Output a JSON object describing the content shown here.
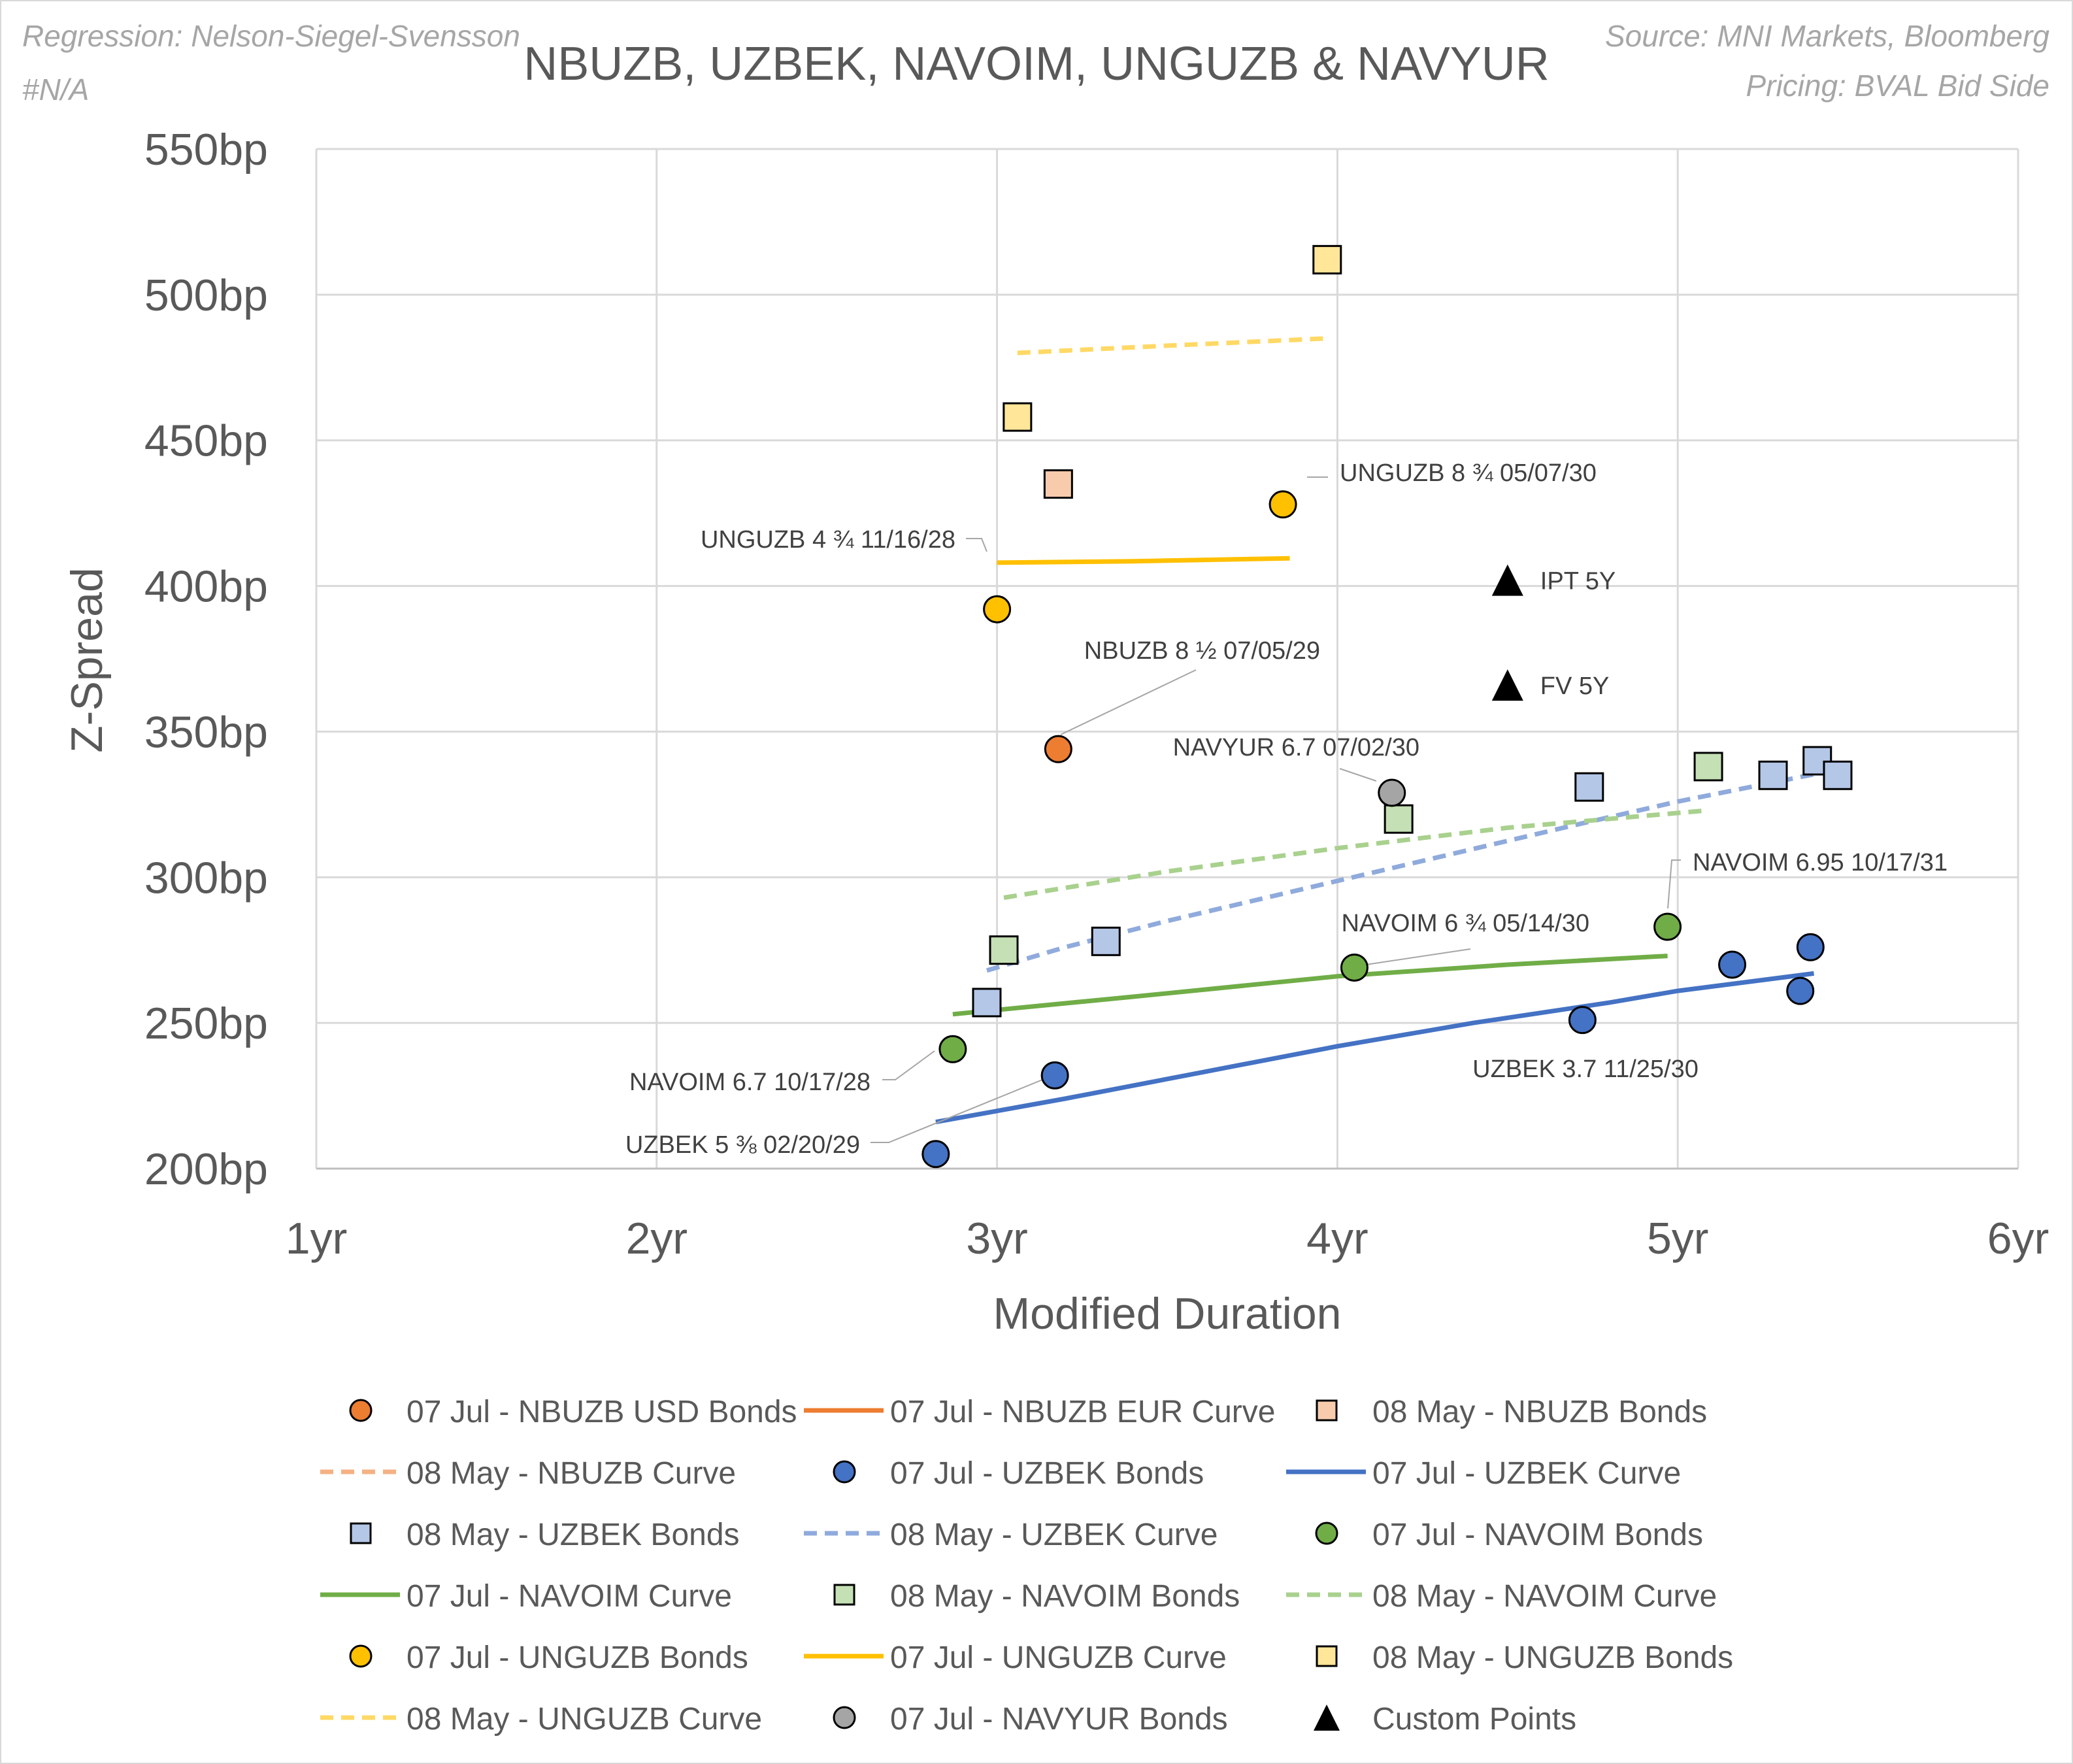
{
  "header": {
    "regression": "Regression: Nelson-Siegel-Svensson",
    "regression_value": "#N/A",
    "source": "Source: MNI Markets, Bloomberg",
    "pricing": "Pricing: BVAL Bid Side"
  },
  "chart_data": {
    "type": "scatter",
    "title": "NBUZB, UZBEK, NAVOIM, UNGUZB & NAVYUR",
    "xlabel": "Modified Duration",
    "ylabel": "Z-Spread",
    "xlim": [
      1,
      6
    ],
    "ylim": [
      200,
      550
    ],
    "x_ticks": [
      1,
      2,
      3,
      4,
      5,
      6
    ],
    "x_tick_labels": [
      "1yr",
      "2yr",
      "3yr",
      "4yr",
      "5yr",
      "6yr"
    ],
    "y_ticks": [
      200,
      250,
      300,
      350,
      400,
      450,
      500,
      550
    ],
    "y_tick_labels": [
      "200bp",
      "250bp",
      "300bp",
      "350bp",
      "400bp",
      "450bp",
      "500bp",
      "550bp"
    ],
    "grid": true,
    "legend_position": "bottom",
    "series": [
      {
        "name": "07 Jul - NBUZB  USD Bonds",
        "kind": "marker",
        "marker": "circle",
        "color": "#ed7d31",
        "points": [
          [
            3.18,
            344
          ]
        ]
      },
      {
        "name": "07 Jul - NBUZB EUR Curve",
        "kind": "line",
        "color": "#ed7d31",
        "dash": "solid",
        "points": []
      },
      {
        "name": "08 May - NBUZB Bonds",
        "kind": "marker",
        "marker": "square",
        "color": "#f8cbad",
        "points": [
          [
            3.18,
            435
          ]
        ]
      },
      {
        "name": "08 May - NBUZB Curve",
        "kind": "line",
        "color": "#f4b183",
        "dash": "dash",
        "points": []
      },
      {
        "name": "07 Jul - UZBEK Bonds",
        "kind": "marker",
        "marker": "circle",
        "color": "#4472c4",
        "points": [
          [
            2.82,
            205
          ],
          [
            3.17,
            232
          ],
          [
            4.72,
            251
          ],
          [
            5.16,
            270
          ],
          [
            5.36,
            261
          ],
          [
            5.39,
            276
          ]
        ]
      },
      {
        "name": "07 Jul - UZBEK Curve",
        "kind": "line",
        "color": "#4472c4",
        "dash": "solid",
        "points": [
          [
            2.82,
            216
          ],
          [
            3.2,
            224
          ],
          [
            3.6,
            233
          ],
          [
            4.0,
            242
          ],
          [
            4.4,
            250
          ],
          [
            4.8,
            257
          ],
          [
            5.0,
            261
          ],
          [
            5.4,
            267
          ]
        ]
      },
      {
        "name": "08 May - UZBEK Bonds",
        "kind": "marker",
        "marker": "square",
        "color": "#b4c7e7",
        "points": [
          [
            2.97,
            257
          ],
          [
            3.32,
            278
          ],
          [
            4.74,
            331
          ],
          [
            5.28,
            335
          ],
          [
            5.41,
            340
          ],
          [
            5.47,
            335
          ]
        ]
      },
      {
        "name": "08 May - UZBEK Curve",
        "kind": "line",
        "color": "#8faadc",
        "dash": "dash",
        "points": [
          [
            2.97,
            268
          ],
          [
            3.2,
            276
          ],
          [
            3.5,
            285
          ],
          [
            3.9,
            296
          ],
          [
            4.3,
            307
          ],
          [
            4.7,
            318
          ],
          [
            5.0,
            326
          ],
          [
            5.47,
            337
          ]
        ]
      },
      {
        "name": "07 Jul - NAVOIM Bonds",
        "kind": "marker",
        "marker": "circle",
        "color": "#70ad47",
        "points": [
          [
            2.87,
            241
          ],
          [
            4.05,
            269
          ],
          [
            4.97,
            283
          ]
        ]
      },
      {
        "name": "07 Jul - NAVOIM Curve",
        "kind": "line",
        "color": "#70ad47",
        "dash": "solid",
        "points": [
          [
            2.87,
            253
          ],
          [
            3.4,
            259
          ],
          [
            4.0,
            266
          ],
          [
            4.5,
            270
          ],
          [
            4.97,
            273
          ]
        ]
      },
      {
        "name": "08 May - NAVOIM Bonds",
        "kind": "marker",
        "marker": "square",
        "color": "#c5e0b4",
        "points": [
          [
            3.02,
            275
          ],
          [
            4.18,
            320
          ],
          [
            5.09,
            338
          ]
        ]
      },
      {
        "name": "08 May - NAVOIM Curve",
        "kind": "line",
        "color": "#a9d18e",
        "dash": "dash",
        "points": [
          [
            3.02,
            293
          ],
          [
            3.5,
            302
          ],
          [
            4.0,
            310
          ],
          [
            4.5,
            317
          ],
          [
            5.09,
            323
          ]
        ]
      },
      {
        "name": "07 Jul - UNGUZB Bonds",
        "kind": "marker",
        "marker": "circle",
        "color": "#ffc000",
        "points": [
          [
            3.0,
            392
          ],
          [
            3.84,
            428
          ]
        ]
      },
      {
        "name": "07 Jul - UNGUZB Curve",
        "kind": "line",
        "color": "#ffc000",
        "dash": "solid",
        "points": [
          [
            3.0,
            408
          ],
          [
            3.4,
            408.5
          ],
          [
            3.86,
            409.5
          ]
        ]
      },
      {
        "name": "08 May - UNGUZB Bonds",
        "kind": "marker",
        "marker": "square",
        "color": "#ffe699",
        "points": [
          [
            3.06,
            458
          ],
          [
            3.97,
            512
          ]
        ]
      },
      {
        "name": "08 May - UNGUZB Curve",
        "kind": "line",
        "color": "#ffd966",
        "dash": "dash",
        "points": [
          [
            3.06,
            480
          ],
          [
            3.5,
            482.5
          ],
          [
            3.97,
            485
          ]
        ]
      },
      {
        "name": "07 Jul - NAVYUR Bonds",
        "kind": "marker",
        "marker": "circle",
        "color": "#a5a5a5",
        "points": [
          [
            4.16,
            329
          ]
        ]
      },
      {
        "name": "Custom Points",
        "kind": "marker",
        "marker": "triangle",
        "color": "#000000",
        "points": [
          [
            4.5,
            402
          ],
          [
            4.5,
            366
          ]
        ]
      }
    ],
    "custom_point_labels": [
      "IPT 5Y",
      "FV 5Y"
    ],
    "annotations": [
      {
        "text": "UNGUZB 8 ¾ 05/07/30",
        "point": [
          3.84,
          428
        ]
      },
      {
        "text": "UNGUZB 4 ¾ 11/16/28",
        "point": [
          3.0,
          392
        ]
      },
      {
        "text": "NBUZB 8 ½ 07/05/29",
        "point": [
          3.18,
          344
        ]
      },
      {
        "text": "NAVYUR 6.7 07/02/30",
        "point": [
          4.16,
          329
        ]
      },
      {
        "text": "NAVOIM 6.95 10/17/31",
        "point": [
          4.97,
          283
        ]
      },
      {
        "text": "NAVOIM 6 ¾ 05/14/30",
        "point": [
          4.05,
          269
        ]
      },
      {
        "text": "UZBEK 3.7 11/25/30",
        "point": [
          4.72,
          251
        ]
      },
      {
        "text": "NAVOIM 6.7 10/17/28",
        "point": [
          2.87,
          241
        ]
      },
      {
        "text": "UZBEK 5 ⅜ 02/20/29",
        "point": [
          3.17,
          232
        ]
      }
    ]
  }
}
